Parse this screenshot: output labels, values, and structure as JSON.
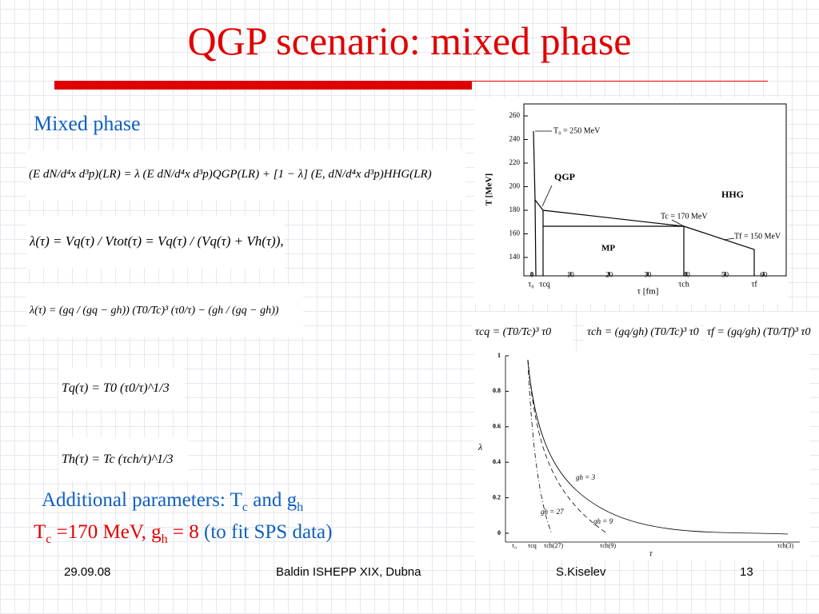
{
  "title": "QGP scenario: mixed phase",
  "subtitle": "Mixed phase",
  "equations": [
    "(E dN/d⁴x d³p)(LR) = λ (E dN/d⁴x d³p)QGP(LR) + [1 − λ] (E, dN/d⁴x d³p)HHG(LR)",
    "λ(τ) = Vq(τ) / Vtot(τ) = Vq(τ) / (Vq(τ) + Vh(τ)),",
    "λ(τ) = (gq / (gq − gh)) (T0/Tc)³ (τ0/τ) − (gh / (gq − gh))",
    "Tq(τ) = T0 (τ0/τ)^1/3",
    "Th(τ) = Tc (τch/τ)^1/3",
    "τcq = (T0/Tc)³ τ0",
    "τch = (gq/gh) (T0/Tc)³ τ0",
    "τf = (gq/gh) (T0/Tf)³ τ0"
  ],
  "parameters": {
    "line1": [
      "Additional parameters:  T",
      "c",
      " and g",
      "h"
    ],
    "line2": [
      "T",
      "c",
      " =170 MeV,  g",
      "h",
      " = 8",
      " (to fit SPS data)"
    ]
  },
  "phase_plot": {
    "y_axis_label": "T [MeV]",
    "x_axis_label": "τ [fm]",
    "yticks": [
      140,
      160,
      180,
      200,
      220,
      240,
      260
    ],
    "xticks": [
      0,
      10,
      20,
      30,
      40,
      50,
      60
    ],
    "annotations": [
      "T₀ = 250 MeV",
      "QGP",
      "HHG",
      "Tc = 170 MeV",
      "Tf = 150 MeV",
      "MP"
    ],
    "markers": [
      "τ₀",
      "τcq",
      "τch",
      "τf"
    ]
  },
  "lambda_plot": {
    "y_axis_label": "λ",
    "x_axis_label": "τ",
    "yticks": [
      0,
      0.2,
      0.4,
      0.6,
      0.8,
      1
    ],
    "curve_labels": [
      "gh = 3",
      "gh = 27",
      "gh = 9"
    ],
    "markers": [
      "τ₀",
      "τcq",
      "τch(27)",
      "τch(9)",
      "τch(3)"
    ]
  },
  "footer": {
    "date": "29.09.08",
    "event": "Baldin ISHEPP XIX, Dubna",
    "author": "S.Kiselev",
    "page": "13"
  }
}
